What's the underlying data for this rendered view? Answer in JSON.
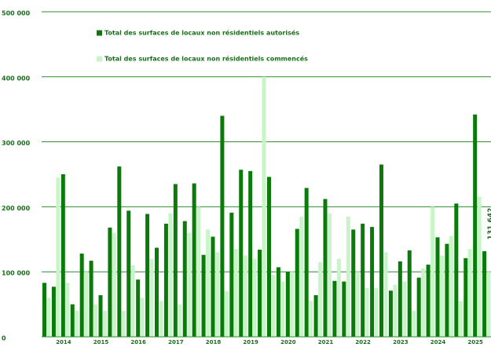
{
  "chart_data": {
    "type": "bar",
    "categories": [
      null,
      null,
      "2014",
      null,
      null,
      null,
      "2015",
      null,
      null,
      null,
      "2016",
      null,
      null,
      null,
      "2017",
      null,
      null,
      null,
      "2018",
      null,
      null,
      null,
      "2019",
      null,
      null,
      null,
      "2020",
      null,
      null,
      null,
      "2021",
      null,
      null,
      null,
      "2022",
      null,
      null,
      null,
      "2023",
      null,
      null,
      null,
      "2024",
      null,
      null,
      null,
      "2025",
      null
    ],
    "series": [
      {
        "name": "Total des surfaces de locaux non résidentiels autorisés",
        "color": "#0a7a0a",
        "values": [
          83000,
          77000,
          250000,
          50000,
          128000,
          117000,
          64000,
          168000,
          262000,
          194000,
          88000,
          189000,
          137000,
          174000,
          235000,
          178000,
          236000,
          126000,
          154000,
          340000,
          191000,
          257000,
          255000,
          134000,
          246000,
          107000,
          100000,
          166000,
          229000,
          64000,
          212000,
          86000,
          85000,
          165000,
          174000,
          169000,
          265000,
          71000,
          116000,
          133000,
          91000,
          111000,
          153000,
          143000,
          205000,
          121000,
          342000,
          131642
        ],
        "value_labels": [
          null,
          null,
          null,
          null,
          null,
          null,
          null,
          null,
          null,
          null,
          null,
          null,
          null,
          null,
          null,
          null,
          null,
          null,
          null,
          null,
          null,
          null,
          null,
          null,
          null,
          null,
          null,
          null,
          null,
          null,
          null,
          null,
          null,
          null,
          null,
          null,
          null,
          null,
          null,
          null,
          null,
          null,
          null,
          null,
          null,
          null,
          null,
          "131 642"
        ]
      },
      {
        "name": "Total des surfaces de locaux non résidentiels commencés",
        "color": "#c8f5c8",
        "values": [
          60000,
          245000,
          83000,
          40000,
          100000,
          50000,
          40000,
          160000,
          40000,
          110000,
          60000,
          120000,
          55000,
          190000,
          50000,
          160000,
          200000,
          165000,
          130000,
          70000,
          135000,
          125000,
          120000,
          400000,
          95000,
          85000,
          100000,
          185000,
          55000,
          115000,
          190000,
          120000,
          185000,
          100000,
          75000,
          75000,
          130000,
          80000,
          85000,
          40000,
          105000,
          200000,
          125000,
          155000,
          55000,
          135000,
          215000,
          100000
        ]
      }
    ],
    "ylim": [
      0,
      500000
    ],
    "yticks": [
      {
        "value": 0,
        "label": "0"
      },
      {
        "value": 100000,
        "label": "100 000"
      },
      {
        "value": 200000,
        "label": "200 000"
      },
      {
        "value": 300000,
        "label": "300 000"
      },
      {
        "value": 400000,
        "label": "400 000"
      },
      {
        "value": 500000,
        "label": "500 000"
      }
    ],
    "grid": true
  }
}
